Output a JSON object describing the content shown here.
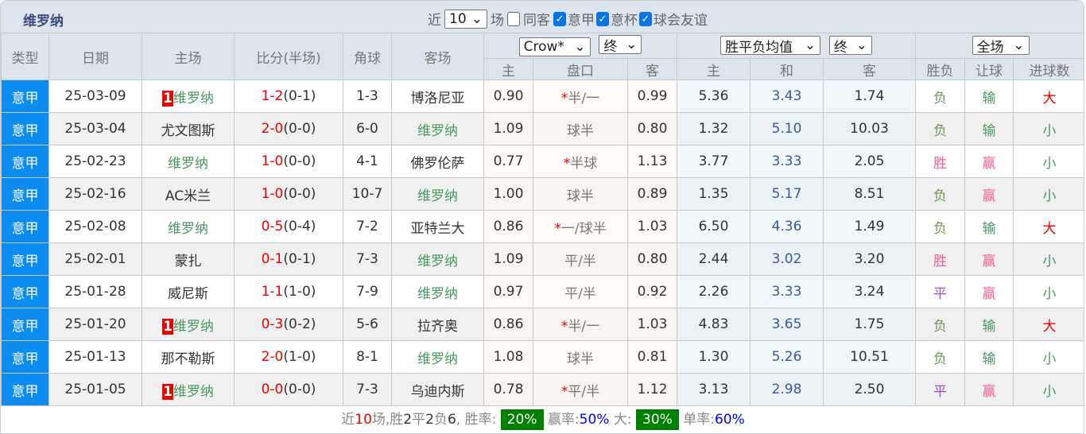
{
  "title": "维罗纳",
  "filters": {
    "near": "近",
    "count": "10",
    "unit": "场",
    "same_label": "同客",
    "same_checked": false,
    "leagues": [
      {
        "label": "意甲",
        "checked": true
      },
      {
        "label": "意杯",
        "checked": true
      },
      {
        "label": "球会友谊",
        "checked": true
      }
    ]
  },
  "headers": {
    "type": "类型",
    "date": "日期",
    "home": "主场",
    "score": "比分(半场)",
    "corner": "角球",
    "away": "客场",
    "company": "Crow*",
    "ah_stage": "终",
    "eu_type": "胜平负均值",
    "eu_stage": "终",
    "scope": "全场",
    "h": "主",
    "line": "盘口",
    "a": "客",
    "eh": "主",
    "ed": "和",
    "ea": "客",
    "wl": "胜负",
    "hc": "让球",
    "ou": "进球数"
  },
  "rows": [
    {
      "type": "意甲",
      "date": "25-03-09",
      "rank": "1",
      "home": "维罗纳",
      "home_team": true,
      "ft": "1-2",
      "ht": "(0-1)",
      "corner": "1-3",
      "away": "博洛尼亚",
      "away_team": false,
      "h": "0.90",
      "star": "*",
      "line": "半/一",
      "a": "0.99",
      "eh": "5.36",
      "ed": "3.43",
      "ea": "1.74",
      "wl": "负",
      "hc": "输",
      "ou": "大"
    },
    {
      "type": "意甲",
      "date": "25-03-04",
      "rank": "",
      "home": "尤文图斯",
      "home_team": false,
      "ft": "2-0",
      "ht": "(0-0)",
      "corner": "6-0",
      "away": "维罗纳",
      "away_team": true,
      "h": "1.09",
      "star": "",
      "line": "球半",
      "a": "0.80",
      "eh": "1.32",
      "ed": "5.10",
      "ea": "10.03",
      "wl": "负",
      "hc": "输",
      "ou": "小"
    },
    {
      "type": "意甲",
      "date": "25-02-23",
      "rank": "",
      "home": "维罗纳",
      "home_team": true,
      "ft": "1-0",
      "ht": "(0-0)",
      "corner": "4-1",
      "away": "佛罗伦萨",
      "away_team": false,
      "h": "0.77",
      "star": "*",
      "line": "半球",
      "a": "1.13",
      "eh": "3.77",
      "ed": "3.33",
      "ea": "2.05",
      "wl": "胜",
      "hc": "赢",
      "ou": "小"
    },
    {
      "type": "意甲",
      "date": "25-02-16",
      "rank": "",
      "home": "AC米兰",
      "home_team": false,
      "ft": "1-0",
      "ht": "(0-0)",
      "corner": "10-7",
      "away": "维罗纳",
      "away_team": true,
      "h": "1.00",
      "star": "",
      "line": "球半",
      "a": "0.89",
      "eh": "1.35",
      "ed": "5.17",
      "ea": "8.51",
      "wl": "负",
      "hc": "赢",
      "ou": "小"
    },
    {
      "type": "意甲",
      "date": "25-02-08",
      "rank": "",
      "home": "维罗纳",
      "home_team": true,
      "ft": "0-5",
      "ht": "(0-4)",
      "corner": "7-2",
      "away": "亚特兰大",
      "away_team": false,
      "h": "0.86",
      "star": "*",
      "line": "一/球半",
      "a": "1.03",
      "eh": "6.50",
      "ed": "4.36",
      "ea": "1.49",
      "wl": "负",
      "hc": "输",
      "ou": "大"
    },
    {
      "type": "意甲",
      "date": "25-02-01",
      "rank": "",
      "home": "蒙扎",
      "home_team": false,
      "ft": "0-1",
      "ht": "(0-1)",
      "corner": "7-3",
      "away": "维罗纳",
      "away_team": true,
      "h": "1.09",
      "star": "",
      "line": "平/半",
      "a": "0.80",
      "eh": "2.44",
      "ed": "3.02",
      "ea": "3.20",
      "wl": "胜",
      "hc": "赢",
      "ou": "小"
    },
    {
      "type": "意甲",
      "date": "25-01-28",
      "rank": "",
      "home": "威尼斯",
      "home_team": false,
      "ft": "1-1",
      "ht": "(1-0)",
      "corner": "7-9",
      "away": "维罗纳",
      "away_team": true,
      "h": "0.97",
      "star": "",
      "line": "平/半",
      "a": "0.92",
      "eh": "2.26",
      "ed": "3.33",
      "ea": "3.24",
      "wl": "平",
      "hc": "赢",
      "ou": "小"
    },
    {
      "type": "意甲",
      "date": "25-01-20",
      "rank": "1",
      "home": "维罗纳",
      "home_team": true,
      "ft": "0-3",
      "ht": "(0-2)",
      "corner": "5-6",
      "away": "拉齐奥",
      "away_team": false,
      "h": "0.86",
      "star": "*",
      "line": "半/一",
      "a": "1.03",
      "eh": "4.83",
      "ed": "3.65",
      "ea": "1.75",
      "wl": "负",
      "hc": "输",
      "ou": "大"
    },
    {
      "type": "意甲",
      "date": "25-01-13",
      "rank": "",
      "home": "那不勒斯",
      "home_team": false,
      "ft": "2-0",
      "ht": "(1-0)",
      "corner": "8-1",
      "away": "维罗纳",
      "away_team": true,
      "h": "1.08",
      "star": "",
      "line": "球半",
      "a": "0.81",
      "eh": "1.30",
      "ed": "5.26",
      "ea": "10.51",
      "wl": "负",
      "hc": "输",
      "ou": "小"
    },
    {
      "type": "意甲",
      "date": "25-01-05",
      "rank": "1",
      "home": "维罗纳",
      "home_team": true,
      "ft": "0-0",
      "ht": "(0-0)",
      "corner": "7-3",
      "away": "乌迪内斯",
      "away_team": false,
      "h": "0.78",
      "star": "*",
      "line": "平/半",
      "a": "1.12",
      "eh": "3.13",
      "ed": "2.98",
      "ea": "2.50",
      "wl": "平",
      "hc": "赢",
      "ou": "小"
    }
  ],
  "summary": {
    "p1": "近",
    "n": "10",
    "p2": "场,",
    "w_l": "胜",
    "w": "2",
    "d_l": "平",
    "d": "2",
    "l_l": "负",
    "l": "6",
    ", 胜率:": "",
    "win_rate_label": ", 胜率:",
    "win_rate": "20%",
    "hc_label": "赢率:",
    "hc_rate": "50%",
    "ou_label": "大:",
    "ou_rate": "30%",
    "odd_label": "单率:",
    "odd_rate": "60%"
  }
}
